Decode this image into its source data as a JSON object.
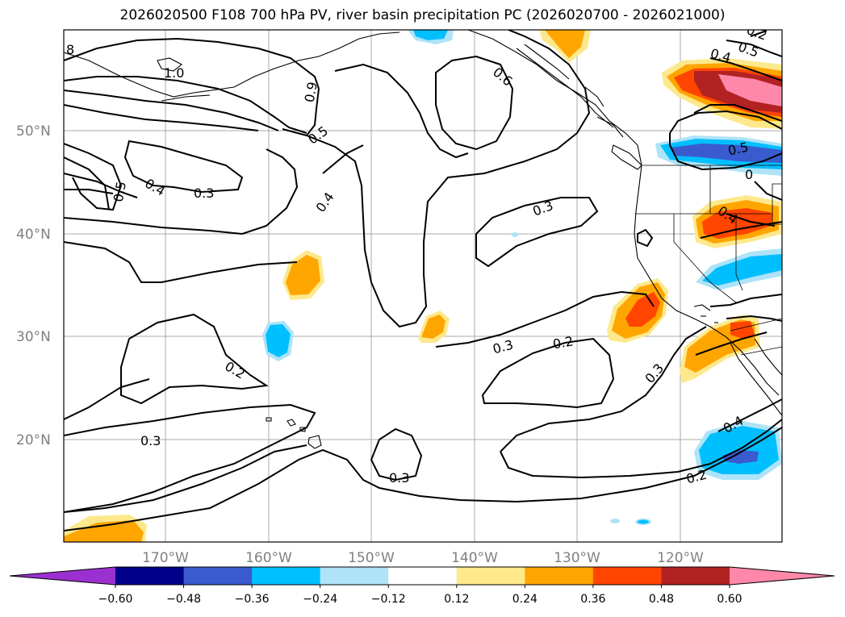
{
  "title": "2026020500 F108 700 hPa PV, river basin precipitation PC (2026020700 - 2026021000)",
  "map": {
    "lat_labels": [
      "50°N",
      "40°N",
      "30°N",
      "20°N"
    ],
    "lon_labels": [
      "170°W",
      "160°W",
      "150°W",
      "140°W",
      "130°W",
      "120°W"
    ],
    "contour_labels": [
      "8",
      "1.0",
      "0.9",
      "0.5",
      "0.6",
      "0.4",
      "0.5",
      "0.5",
      "0.4",
      "0.3",
      "0.4",
      "0.3",
      "0.5",
      "0",
      "0.4",
      "0.3",
      "0.2",
      "0.3",
      "0.2",
      "0.3",
      "0.3",
      "0.4",
      "0.2",
      "0.2"
    ]
  },
  "colorbar": {
    "ticks": [
      "−0.60",
      "−0.48",
      "−0.36",
      "−0.24",
      "−0.12",
      "0.12",
      "0.24",
      "0.36",
      "0.48",
      "0.60"
    ],
    "colors": [
      "#9b30d0",
      "#00008b",
      "#3a5bcf",
      "#00bfff",
      "#aee3f8",
      "#ffffff",
      "#fde98c",
      "#ffa500",
      "#ff4500",
      "#b22222",
      "#ff88aa"
    ]
  }
}
